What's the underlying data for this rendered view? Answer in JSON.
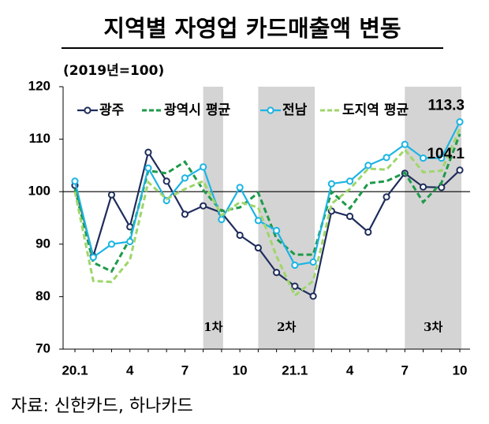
{
  "chart_data": {
    "type": "line",
    "title": "지역별 자영업 카드매출액 변동",
    "subtitle": "(2019년=100)",
    "source": "자료: 신한카드, 하나카드",
    "categories": [
      "20.1",
      null,
      null,
      "4",
      null,
      null,
      "7",
      null,
      null,
      "10",
      null,
      null,
      "21.1",
      null,
      null,
      "4",
      null,
      null,
      "7",
      null,
      null,
      "10"
    ],
    "series": [
      {
        "name": "광주",
        "color": "#1f2d5c",
        "dashed": false,
        "markers": true,
        "values": [
          101.2,
          87.7,
          99.4,
          93.3,
          107.5,
          102,
          95.7,
          97.3,
          96,
          91.7,
          89.3,
          84.6,
          82,
          80.1,
          96.3,
          95.3,
          92.3,
          99,
          103.5,
          100.9,
          100.8,
          104.1
        ]
      },
      {
        "name": "광역시 평균",
        "color": "#1e9a4a",
        "dashed": true,
        "markers": false,
        "values": [
          100.5,
          86.5,
          84.8,
          91,
          104,
          103.5,
          105.7,
          100.3,
          96.3,
          97,
          99.8,
          91,
          88,
          88,
          100,
          96.8,
          101.6,
          102,
          103.6,
          98,
          101.7,
          111
        ]
      },
      {
        "name": "전남",
        "color": "#1cb4e3",
        "dashed": false,
        "markers": true,
        "values": [
          102,
          87.5,
          90,
          90.5,
          104.5,
          98.3,
          102.6,
          104.7,
          94.7,
          100.8,
          94.5,
          92.6,
          86,
          86.6,
          101.5,
          102,
          105,
          106.5,
          109,
          106.4,
          106.4,
          113.3
        ]
      },
      {
        "name": "도지역 평균",
        "color": "#9fd66a",
        "dashed": true,
        "markers": false,
        "values": [
          100,
          83,
          82.8,
          87,
          101.8,
          98.6,
          100.5,
          102,
          95.5,
          98,
          97,
          87.7,
          80.2,
          83,
          97.7,
          100.5,
          104.4,
          104.2,
          108,
          103.7,
          104,
          112
        ]
      }
    ],
    "ylim": [
      70,
      120
    ],
    "yticks": [
      70,
      80,
      90,
      100,
      110,
      120
    ],
    "reference_line": 100,
    "shaded_periods": [
      {
        "label": "1차",
        "start": 7,
        "end": 8
      },
      {
        "label": "2차",
        "start": 10,
        "end": 13
      },
      {
        "label": "3차",
        "start": 18,
        "end": 21
      }
    ],
    "shade_color": "#d4d4d4",
    "end_labels": [
      0,
      2
    ]
  }
}
